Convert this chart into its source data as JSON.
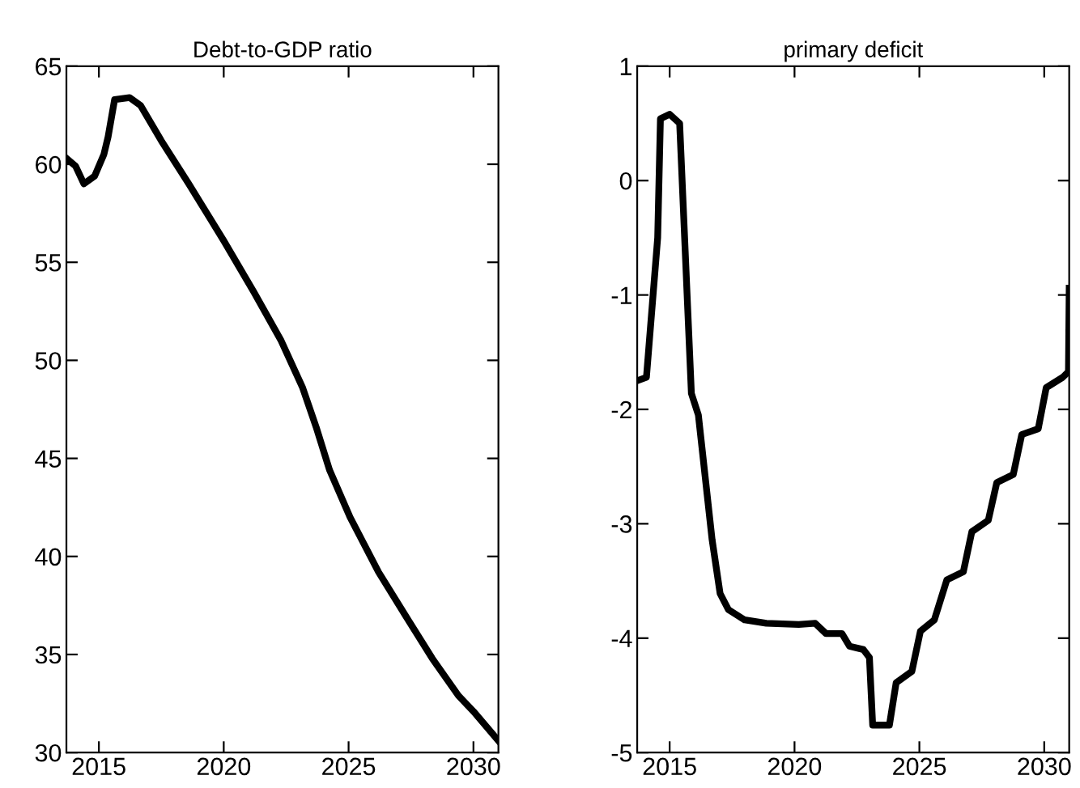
{
  "chart_data": [
    {
      "type": "line",
      "title": "Debt-to-GDP ratio",
      "xlim": [
        2013.7,
        2031
      ],
      "xticks": [
        2015,
        2020,
        2025,
        2030
      ],
      "ylim": [
        30,
        65
      ],
      "yticks": [
        30,
        35,
        40,
        45,
        50,
        55,
        60,
        65
      ],
      "grid": false,
      "legend": false,
      "series": [
        {
          "color": "#000000",
          "x": [
            2013.7,
            2014.07,
            2014.4,
            2014.83,
            2015.2,
            2015.37,
            2015.63,
            2016.23,
            2016.67,
            2017.5,
            2018.6,
            2020,
            2021.2,
            2022.3,
            2023.16,
            2023.7,
            2024.24,
            2025.06,
            2026.2,
            2027.27,
            2028.35,
            2029.4,
            2030,
            2031
          ],
          "values": [
            60.3,
            59.9,
            59.0,
            59.4,
            60.5,
            61.4,
            63.3,
            63.4,
            63.0,
            61.2,
            59.0,
            56.1,
            53.5,
            51.0,
            48.6,
            46.6,
            44.4,
            42.0,
            39.2,
            37.0,
            34.8,
            32.9,
            32.1,
            30.6
          ]
        }
      ]
    },
    {
      "type": "line",
      "title": "primary deficit",
      "xlim": [
        2013.7,
        2031
      ],
      "xticks": [
        2015,
        2020,
        2025,
        2030
      ],
      "ylim": [
        -5,
        1
      ],
      "yticks": [
        -5,
        -4,
        -3,
        -2,
        -1,
        0,
        1
      ],
      "grid": false,
      "legend": false,
      "series": [
        {
          "color": "#000000",
          "x": [
            2013.7,
            2014.07,
            2014.52,
            2014.63,
            2015.0,
            2015.4,
            2015.87,
            2016.15,
            2016.7,
            2017.02,
            2017.35,
            2018,
            2018.87,
            2020.17,
            2020.83,
            2021.26,
            2021.9,
            2022.2,
            2022.76,
            2023.0,
            2023.13,
            2023.8,
            2024.07,
            2024.7,
            2025.04,
            2025.6,
            2026.1,
            2026.76,
            2027.1,
            2027.76,
            2028.1,
            2028.76,
            2029.1,
            2029.76,
            2030.08,
            2030.74,
            2030.97,
            2031
          ],
          "values": [
            -1.75,
            -1.72,
            -0.5,
            0.54,
            0.58,
            0.5,
            -1.86,
            -2.05,
            -3.14,
            -3.61,
            -3.75,
            -3.84,
            -3.87,
            -3.88,
            -3.87,
            -3.96,
            -3.96,
            -4.07,
            -4.1,
            -4.17,
            -4.76,
            -4.76,
            -4.39,
            -4.29,
            -3.94,
            -3.84,
            -3.49,
            -3.42,
            -3.07,
            -2.97,
            -2.64,
            -2.57,
            -2.22,
            -2.17,
            -1.81,
            -1.72,
            -1.67,
            -0.94
          ]
        }
      ]
    }
  ]
}
